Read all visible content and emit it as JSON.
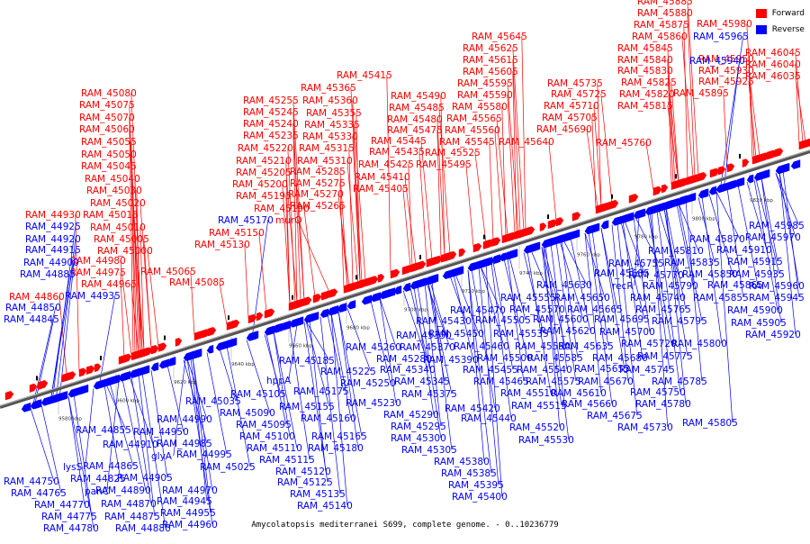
{
  "caption": "Amycolatopsis mediterranei S699, complete genome. - 0..10236779",
  "legend": [
    {
      "label": "Forward",
      "color": "#ff0000"
    },
    {
      "label": "Reverse",
      "color": "#0000ff"
    }
  ],
  "colors": {
    "forward": "#ff0000",
    "reverse": "#0000ff",
    "axis": "#777777",
    "rna": "#000000"
  },
  "axis_ticks": [
    "9580 kbp",
    "9600 kbp",
    "9620 kbp",
    "9640 kbp",
    "9660 kbp",
    "9680 kbp",
    "9700 kbp",
    "9720 kbp",
    "9740 kbp",
    "9760 kbp",
    "9780 kbp",
    "9800 kbp",
    "9820 kbp"
  ],
  "forward_labels": [
    [
      "RAM_44930",
      28,
      242
    ],
    [
      "RAM_44860",
      10,
      333
    ],
    [
      "RAM_44980",
      78,
      293
    ],
    [
      "RAM_44975",
      78,
      306
    ],
    [
      "RAM_44965",
      90,
      319
    ],
    [
      "RAM_45015",
      92,
      242
    ],
    [
      "RAM_45010",
      100,
      256
    ],
    [
      "RAM_45005",
      104,
      269
    ],
    [
      "RAM_45000",
      108,
      282
    ],
    [
      "RAM_45065",
      156,
      305
    ],
    [
      "RAM_45085",
      188,
      317
    ],
    [
      "RAM_45020",
      100,
      229
    ],
    [
      "RAM_45030",
      96,
      215
    ],
    [
      "RAM_45040",
      94,
      202
    ],
    [
      "RAM_45045",
      90,
      188
    ],
    [
      "RAM_45050",
      90,
      175
    ],
    [
      "RAM_45055",
      90,
      161
    ],
    [
      "RAM_45060",
      88,
      147
    ],
    [
      "RAM_45070",
      88,
      134
    ],
    [
      "RAM_45075",
      88,
      120
    ],
    [
      "RAM_45080",
      90,
      107
    ],
    [
      "RAM_45130",
      216,
      275
    ],
    [
      "RAM_45150",
      232,
      262
    ],
    [
      "RAM_45190",
      282,
      235
    ],
    [
      "RAM_45195",
      262,
      221
    ],
    [
      "RAM_45200",
      258,
      208
    ],
    [
      "RAM_45205",
      262,
      195
    ],
    [
      "RAM_45210",
      262,
      182
    ],
    [
      "RAM_45220",
      264,
      168
    ],
    [
      "RAM_45235",
      270,
      154
    ],
    [
      "RAM_45240",
      270,
      141
    ],
    [
      "RAM_45245",
      270,
      128
    ],
    [
      "RAM_45255",
      270,
      115
    ],
    [
      "murQ",
      306,
      248
    ],
    [
      "RAM_45265",
      322,
      232
    ],
    [
      "RAM_45270",
      320,
      219
    ],
    [
      "RAM_45275",
      322,
      207
    ],
    [
      "RAM_45285",
      322,
      194
    ],
    [
      "RAM_45310",
      330,
      182
    ],
    [
      "RAM_45315",
      332,
      168
    ],
    [
      "RAM_45330",
      336,
      155
    ],
    [
      "RAM_45335",
      338,
      142
    ],
    [
      "RAM_45355",
      340,
      129
    ],
    [
      "RAM_45360",
      336,
      115
    ],
    [
      "RAM_45365",
      334,
      101
    ],
    [
      "RAM_45415",
      374,
      87
    ],
    [
      "RAM_45405",
      392,
      213
    ],
    [
      "RAM_45410",
      394,
      200
    ],
    [
      "RAM_45425",
      398,
      186
    ],
    [
      "RAM_45435",
      410,
      172
    ],
    [
      "RAM_45445",
      412,
      160
    ],
    [
      "RAM_45475",
      430,
      148
    ],
    [
      "RAM_45480",
      430,
      136
    ],
    [
      "RAM_45485",
      432,
      123
    ],
    [
      "RAM_45490",
      434,
      110
    ],
    [
      "RAM_45495",
      462,
      186
    ],
    [
      "RAM_45525",
      472,
      173
    ],
    [
      "RAM_45545",
      488,
      161
    ],
    [
      "RAM_45560",
      494,
      148
    ],
    [
      "RAM_45565",
      496,
      135
    ],
    [
      "RAM_45580",
      502,
      122
    ],
    [
      "RAM_45590",
      508,
      109
    ],
    [
      "RAM_45595",
      508,
      96
    ],
    [
      "RAM_45605",
      514,
      83
    ],
    [
      "RAM_45615",
      514,
      70
    ],
    [
      "RAM_45625",
      514,
      57
    ],
    [
      "RAM_45645",
      524,
      44
    ],
    [
      "RAM_45640",
      554,
      161
    ],
    [
      "RAM_45690",
      596,
      147
    ],
    [
      "RAM_45705",
      602,
      134
    ],
    [
      "RAM_45710",
      604,
      121
    ],
    [
      "RAM_45725",
      612,
      108
    ],
    [
      "RAM_45735",
      608,
      96
    ],
    [
      "RAM_45760",
      662,
      162
    ],
    [
      "RAM_45815",
      686,
      121
    ],
    [
      "RAM_45820",
      688,
      108
    ],
    [
      "RAM_45825",
      690,
      95
    ],
    [
      "RAM_45830",
      686,
      82
    ],
    [
      "RAM_45840",
      686,
      70
    ],
    [
      "RAM_45845",
      686,
      57
    ],
    [
      "RAM_45860",
      702,
      44
    ],
    [
      "RAM_45875",
      704,
      31
    ],
    [
      "RAM_45880",
      708,
      18
    ],
    [
      "RAM_45885",
      708,
      5
    ],
    [
      "RAM_45895",
      748,
      107
    ],
    [
      "RAM_45925",
      776,
      94
    ],
    [
      "RAM_45930",
      776,
      82
    ],
    [
      "RAM_45950",
      776,
      69
    ],
    [
      "RAM_45980",
      774,
      30
    ],
    [
      "RAM_46035",
      828,
      88
    ],
    [
      "RAM_46040",
      828,
      75
    ],
    [
      "RAM_46045",
      828,
      62
    ]
  ],
  "reverse_labels": [
    [
      "RAM_44925",
      28,
      255
    ],
    [
      "RAM_44920",
      28,
      269
    ],
    [
      "RAM_44915",
      28,
      281
    ],
    [
      "RAM_44900",
      26,
      295
    ],
    [
      "RAM_44885",
      22,
      308
    ],
    [
      "RAM_44935",
      72,
      332
    ],
    [
      "RAM_44850",
      6,
      345
    ],
    [
      "RAM_44845",
      4,
      358
    ],
    [
      "RAM_45170",
      242,
      248
    ],
    [
      "RAM_45185",
      310,
      404
    ],
    [
      "hppA",
      296,
      426
    ],
    [
      "RAM_45175",
      326,
      438
    ],
    [
      "RAM_45155",
      310,
      455
    ],
    [
      "RAM_45160",
      334,
      468
    ],
    [
      "RAM_45105",
      256,
      441
    ],
    [
      "RAM_45090",
      244,
      462
    ],
    [
      "RAM_45095",
      262,
      475
    ],
    [
      "RAM_45100",
      266,
      488
    ],
    [
      "RAM_45110",
      274,
      501
    ],
    [
      "RAM_45115",
      288,
      514
    ],
    [
      "RAM_45120",
      306,
      527
    ],
    [
      "RAM_45125",
      308,
      539
    ],
    [
      "RAM_45135",
      322,
      552
    ],
    [
      "RAM_45140",
      330,
      565
    ],
    [
      "RAM_45165",
      346,
      488
    ],
    [
      "RAM_45180",
      342,
      501
    ],
    [
      "RAM_45035",
      206,
      449
    ],
    [
      "RAM_45025",
      222,
      522
    ],
    [
      "RAM_44990",
      174,
      469
    ],
    [
      "RAM_44950",
      148,
      483
    ],
    [
      "RAM_44985",
      174,
      496
    ],
    [
      "RAM_44995",
      196,
      508
    ],
    [
      "glyA",
      168,
      510
    ],
    [
      "RAM_44910",
      114,
      497
    ],
    [
      "RAM_44855",
      84,
      481
    ],
    [
      "RAM_44825",
      78,
      535
    ],
    [
      "RAM_44865",
      92,
      521
    ],
    [
      "lysS",
      70,
      522
    ],
    [
      "RAM_44905",
      130,
      534
    ],
    [
      "RAM_44890",
      106,
      548
    ],
    [
      "RAM_44870",
      112,
      563
    ],
    [
      "RAM_44875",
      116,
      577
    ],
    [
      "RAM_44880",
      128,
      590
    ],
    [
      "RAM_44970",
      180,
      548
    ],
    [
      "RAM_44945",
      174,
      560
    ],
    [
      "RAM_44955",
      178,
      573
    ],
    [
      "RAM_44960",
      180,
      586
    ],
    [
      "panC",
      94,
      549
    ],
    [
      "RAM_44750",
      4,
      538
    ],
    [
      "RAM_44765",
      12,
      551
    ],
    [
      "RAM_44770",
      38,
      564
    ],
    [
      "RAM_44775",
      46,
      577
    ],
    [
      "RAM_44780",
      48,
      590
    ],
    [
      "RAM_45260",
      384,
      389
    ],
    [
      "RAM_45225",
      356,
      416
    ],
    [
      "RAM_45250",
      378,
      429
    ],
    [
      "RAM_45230",
      384,
      451
    ],
    [
      "RAM_45280",
      418,
      402
    ],
    [
      "RAM_45340",
      422,
      414
    ],
    [
      "RAM_45345",
      438,
      427
    ],
    [
      "RAM_45375",
      446,
      441
    ],
    [
      "RAM_45290",
      426,
      464
    ],
    [
      "RAM_45295",
      434,
      477
    ],
    [
      "RAM_45300",
      434,
      490
    ],
    [
      "RAM_45305",
      446,
      503
    ],
    [
      "RAM_45380",
      482,
      516
    ],
    [
      "RAM_45385",
      490,
      529
    ],
    [
      "RAM_45395",
      498,
      542
    ],
    [
      "RAM_45400",
      502,
      555
    ],
    [
      "RAM_45420",
      494,
      457
    ],
    [
      "RAM_45440",
      512,
      468
    ],
    [
      "RAM_45350",
      440,
      376
    ],
    [
      "RAM_45370",
      444,
      389
    ],
    [
      "RAM_45390",
      470,
      403
    ],
    [
      "RAM_45430",
      462,
      360
    ],
    [
      "RAM_45450",
      476,
      374
    ],
    [
      "RAM_45470",
      500,
      348
    ],
    [
      "RAM_45505",
      528,
      359
    ],
    [
      "RAM_45460",
      504,
      388
    ],
    [
      "RAM_45455",
      514,
      414
    ],
    [
      "RAM_45465",
      526,
      427
    ],
    [
      "RAM_45500",
      530,
      401
    ],
    [
      "RAM_45535",
      548,
      374
    ],
    [
      "RAM_45540",
      574,
      414
    ],
    [
      "RAM_45550",
      572,
      388
    ],
    [
      "RAM_45555",
      556,
      334
    ],
    [
      "RAM_45570",
      566,
      347
    ],
    [
      "RAM_45510",
      556,
      440
    ],
    [
      "RAM_45515",
      568,
      454
    ],
    [
      "RAM_45520",
      566,
      478
    ],
    [
      "RAM_45530",
      576,
      492
    ],
    [
      "RAM_45575",
      584,
      427
    ],
    [
      "RAM_45585",
      586,
      401
    ],
    [
      "RAM_45600",
      592,
      358
    ],
    [
      "RAM_45620",
      600,
      371
    ],
    [
      "RAM_45635",
      620,
      388
    ],
    [
      "RAM_45630",
      596,
      320
    ],
    [
      "RAM_45650",
      616,
      334
    ],
    [
      "RAM_45665",
      630,
      347
    ],
    [
      "RAM_45695",
      660,
      358
    ],
    [
      "RAM_45685",
      660,
      307
    ],
    [
      "RAM_45610",
      612,
      440
    ],
    [
      "RAM_45660",
      624,
      452
    ],
    [
      "RAM_45675",
      652,
      465
    ],
    [
      "RAM_45670",
      642,
      427
    ],
    [
      "RAM_45655",
      638,
      413
    ],
    [
      "RAM_45680",
      658,
      401
    ],
    [
      "RAM_45700",
      666,
      372
    ],
    [
      "RAM_45720",
      690,
      385
    ],
    [
      "RAM_45745",
      688,
      414
    ],
    [
      "RAM_45730",
      686,
      478
    ],
    [
      "RAM_45750",
      700,
      439
    ],
    [
      "RAM_45780",
      706,
      452
    ],
    [
      "RAM_45785",
      724,
      427
    ],
    [
      "RAM_45775",
      708,
      399
    ],
    [
      "RAM_45800",
      746,
      385
    ],
    [
      "RAM_45805",
      758,
      473
    ],
    [
      "RAM_45795",
      724,
      360
    ],
    [
      "RAM_45765",
      706,
      347
    ],
    [
      "RAM_45740",
      700,
      334
    ],
    [
      "recR",
      680,
      321
    ],
    [
      "RAM_45770",
      698,
      309
    ],
    [
      "RAM_45790",
      714,
      321
    ],
    [
      "RAM_45755",
      676,
      296
    ],
    [
      "RAM_45810",
      720,
      282
    ],
    [
      "RAM_45835",
      738,
      295
    ],
    [
      "RAM_45850",
      758,
      308
    ],
    [
      "RAM_45865",
      786,
      320
    ],
    [
      "RAM_45855",
      770,
      334
    ],
    [
      "RAM_45870",
      766,
      269
    ],
    [
      "RAM_45910",
      796,
      281
    ],
    [
      "RAM_45915",
      808,
      294
    ],
    [
      "RAM_45935",
      810,
      308
    ],
    [
      "RAM_45960",
      832,
      321
    ],
    [
      "RAM_45945",
      832,
      334
    ],
    [
      "RAM_45900",
      808,
      348
    ],
    [
      "RAM_45905",
      812,
      362
    ],
    [
      "RAM_45920",
      828,
      375
    ],
    [
      "RAM_45985",
      832,
      254
    ],
    [
      "RAM_45970",
      828,
      267
    ],
    [
      "RAM_45940",
      766,
      71
    ],
    [
      "RAM_45965",
      770,
      44
    ]
  ]
}
